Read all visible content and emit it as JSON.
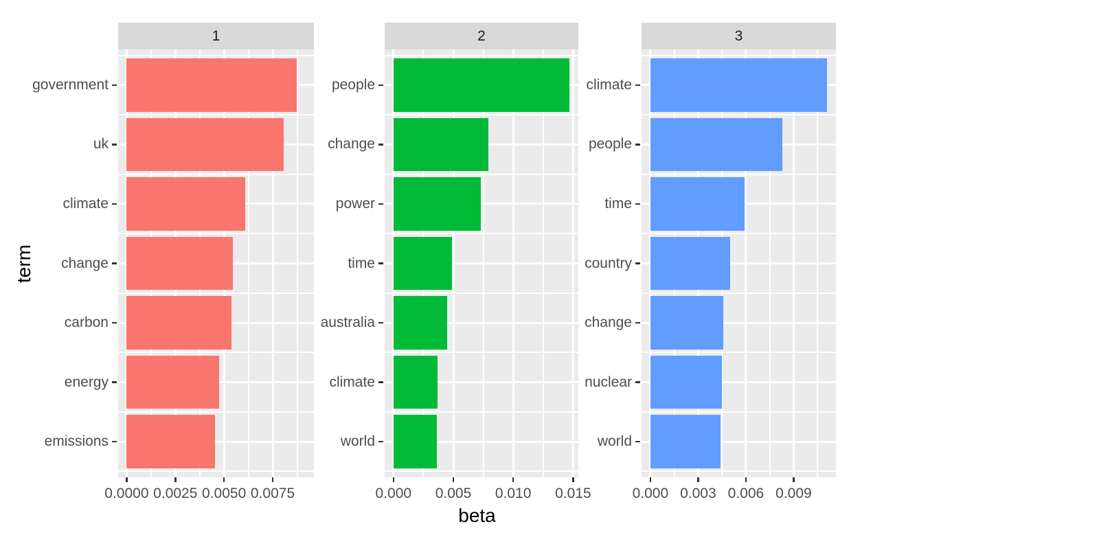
{
  "figure": {
    "background": "#FFFFFF"
  },
  "chart_data": {
    "type": "bar",
    "orientation": "horizontal",
    "title": "",
    "xlabel": "beta",
    "ylabel": "term",
    "legend": "none",
    "grid": "on",
    "facet_labels": [
      "1",
      "2",
      "3"
    ],
    "facets": [
      {
        "label": "1",
        "bar_color": "#F8766D",
        "terms": [
          "government",
          "uk",
          "climate",
          "change",
          "carbon",
          "energy",
          "emissions"
        ],
        "values": [
          0.00874,
          0.00806,
          0.00607,
          0.00545,
          0.00539,
          0.00474,
          0.00454
        ],
        "x_ticks": [
          0,
          0.0025,
          0.005,
          0.0075
        ],
        "x_tick_labels": [
          "0.0000",
          "0.0025",
          "0.0050",
          "0.0075"
        ],
        "x_minor_ticks": [
          0.00125,
          0.00375,
          0.00625,
          0.00875
        ],
        "xlim": [
          -0.000437,
          0.009614
        ]
      },
      {
        "label": "2",
        "bar_color": "#00BA38",
        "terms": [
          "people",
          "change",
          "power",
          "time",
          "australia",
          "climate",
          "world"
        ],
        "values": [
          0.0147,
          0.0079,
          0.0073,
          0.0049,
          0.0045,
          0.0037,
          0.0036
        ],
        "x_ticks": [
          0,
          0.005,
          0.01,
          0.015
        ],
        "x_tick_labels": [
          "0.000",
          "0.005",
          "0.010",
          "0.015"
        ],
        "x_minor_ticks": [
          0.0025,
          0.0075,
          0.0125
        ],
        "xlim": [
          -0.000735,
          0.015435
        ]
      },
      {
        "label": "3",
        "bar_color": "#619CFF",
        "terms": [
          "climate",
          "people",
          "time",
          "country",
          "change",
          "nuclear",
          "world"
        ],
        "values": [
          0.0111,
          0.0083,
          0.0059,
          0.005,
          0.0046,
          0.0045,
          0.0044
        ],
        "x_ticks": [
          0,
          0.003,
          0.006,
          0.009
        ],
        "x_tick_labels": [
          "0.000",
          "0.003",
          "0.006",
          "0.009"
        ],
        "x_minor_ticks": [
          0.0015,
          0.0045,
          0.0075,
          0.0105
        ],
        "xlim": [
          -0.000555,
          0.011655
        ]
      }
    ]
  },
  "theme": {
    "panel_background": "#EBEBEB",
    "strip_background": "#D9D9D9",
    "gridline_color": "#FFFFFF",
    "tick_mark_color": "#333333",
    "tick_label_color": "#4D4D4D",
    "strip_text_color": "#1A1A1A",
    "axis_title_color": "#000000"
  }
}
